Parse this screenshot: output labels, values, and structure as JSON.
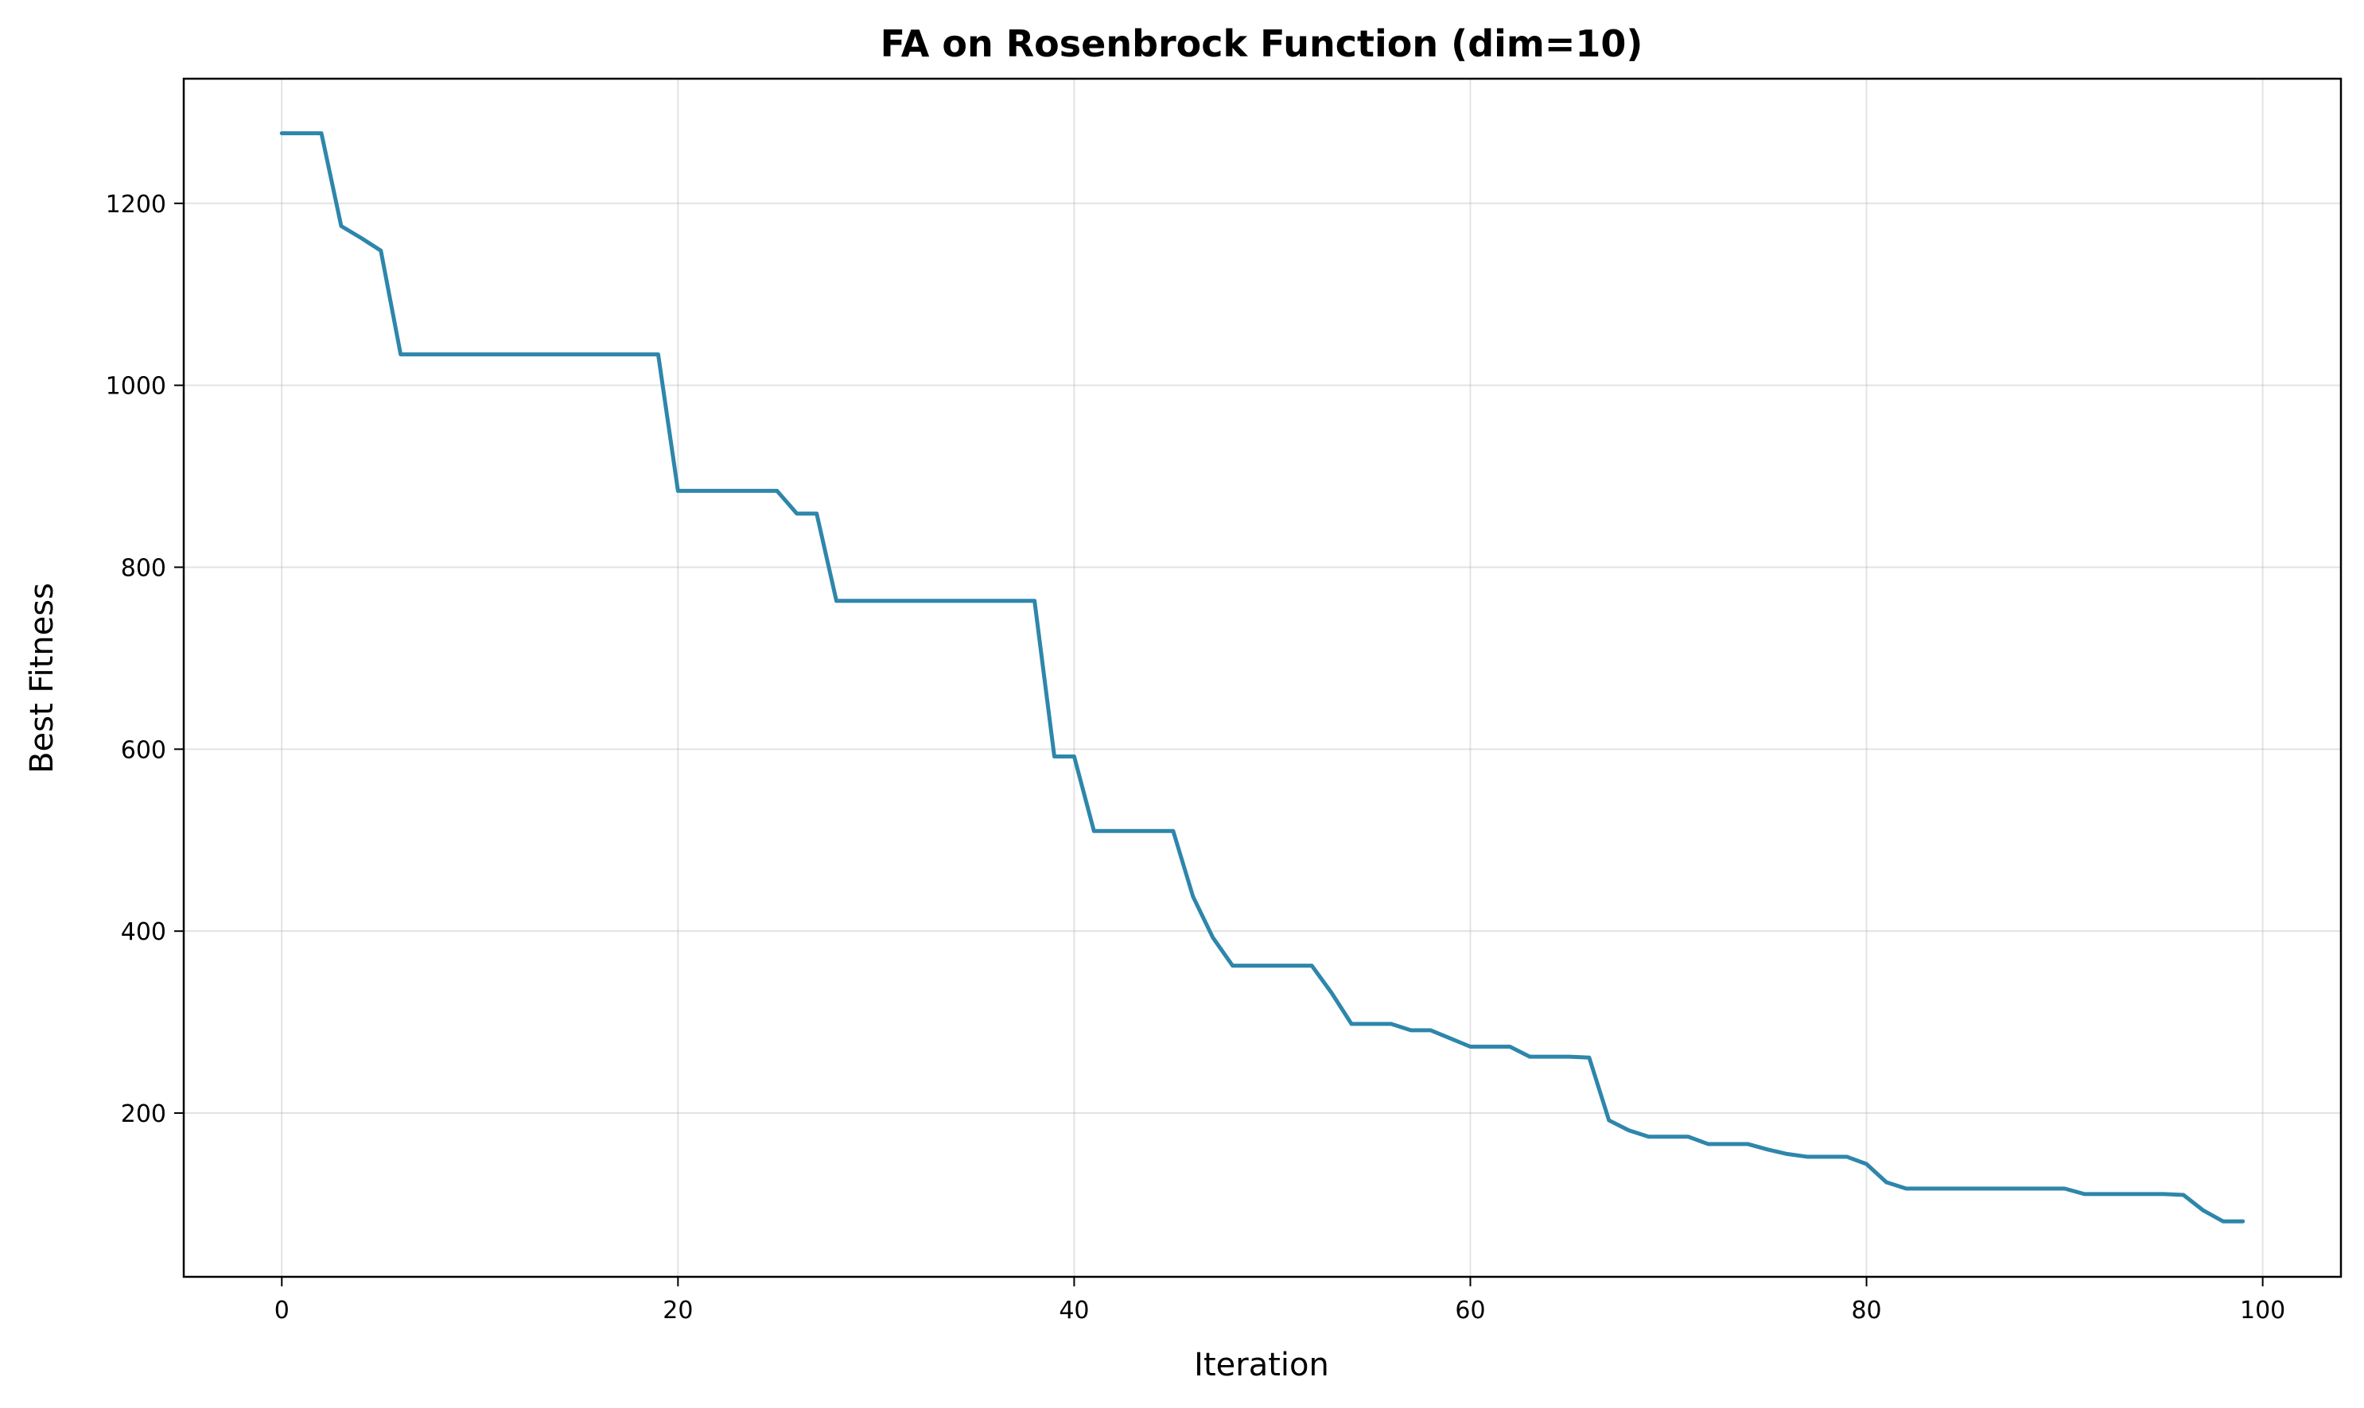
{
  "chart_data": {
    "type": "line",
    "title": "FA on Rosenbrock Function (dim=10)",
    "xlabel": "Iteration",
    "ylabel": "Best Fitness",
    "xlim": [
      -4.95,
      103.95
    ],
    "ylim": [
      20,
      1337
    ],
    "xticks": [
      0,
      20,
      40,
      60,
      80,
      100
    ],
    "yticks": [
      200,
      400,
      600,
      800,
      1000,
      1200
    ],
    "grid": true,
    "colors": {
      "series": "#2e86ab"
    },
    "series": [
      {
        "x": [
          0,
          1,
          2,
          3,
          4,
          5,
          6,
          7,
          8,
          9,
          10,
          11,
          12,
          13,
          14,
          15,
          16,
          17,
          18,
          19,
          20,
          21,
          22,
          23,
          24,
          25,
          26,
          27,
          28,
          29,
          30,
          31,
          32,
          33,
          34,
          35,
          36,
          37,
          38,
          39,
          40,
          41,
          42,
          43,
          44,
          45,
          46,
          47,
          48,
          49,
          50,
          51,
          52,
          53,
          54,
          55,
          56,
          57,
          58,
          59,
          60,
          61,
          62,
          63,
          64,
          65,
          66,
          67,
          68,
          69,
          70,
          71,
          72,
          73,
          74,
          75,
          76,
          77,
          78,
          79,
          80,
          81,
          82,
          83,
          84,
          85,
          86,
          87,
          88,
          89,
          90,
          91,
          92,
          93,
          94,
          95,
          96,
          97,
          98,
          99
        ],
        "values": [
          1277,
          1277,
          1277,
          1175,
          1162,
          1148,
          1034,
          1034,
          1034,
          1034,
          1034,
          1034,
          1034,
          1034,
          1034,
          1034,
          1034,
          1034,
          1034,
          1034,
          884,
          884,
          884,
          884,
          884,
          884,
          859,
          859,
          763,
          763,
          763,
          763,
          763,
          763,
          763,
          763,
          763,
          763,
          763,
          592,
          592,
          510,
          510,
          510,
          510,
          510,
          438,
          393,
          362,
          362,
          362,
          362,
          362,
          332,
          298,
          298,
          298,
          291,
          291,
          282,
          273,
          273,
          273,
          262,
          262,
          262,
          261,
          192,
          181,
          174,
          174,
          174,
          166,
          166,
          166,
          160,
          155,
          152,
          152,
          152,
          144,
          124,
          117,
          117,
          117,
          117,
          117,
          117,
          117,
          117,
          117,
          111,
          111,
          111,
          111,
          111,
          110,
          93,
          81,
          81
        ]
      }
    ]
  }
}
